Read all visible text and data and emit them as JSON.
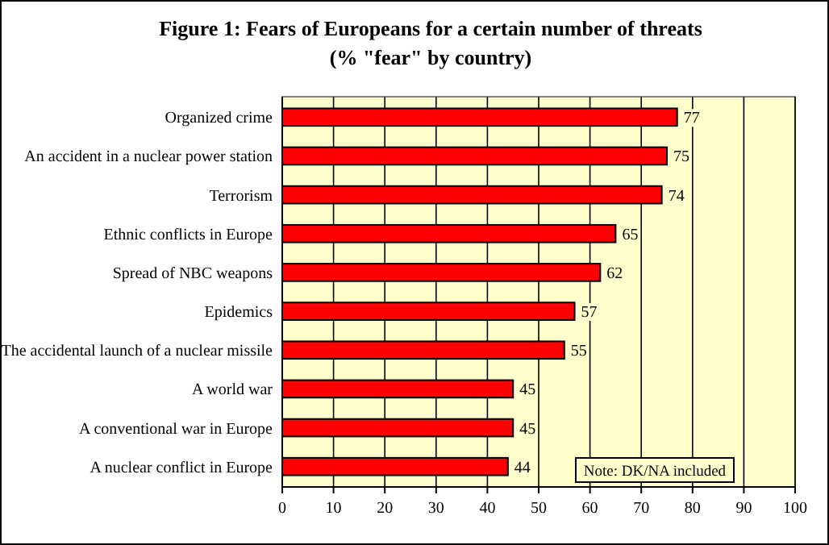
{
  "chart_data": {
    "type": "bar",
    "orientation": "horizontal",
    "title": "Figure 1: Fears of Europeans for a certain number of threats",
    "subtitle": "(% \"fear\" by country)",
    "categories": [
      "Organized crime",
      "An accident in a nuclear power station",
      "Terrorism",
      "Ethnic conflicts in Europe",
      "Spread of NBC weapons",
      "Epidemics",
      "The accidental launch of a nuclear missile",
      "A world war",
      "A conventional war in Europe",
      "A nuclear conflict in Europe"
    ],
    "values": [
      77,
      75,
      74,
      65,
      62,
      57,
      55,
      45,
      45,
      44
    ],
    "color": "#ff0000",
    "data_labels": true,
    "xlim": [
      0,
      100
    ],
    "xticks": [
      0,
      10,
      20,
      30,
      40,
      50,
      60,
      70,
      80,
      90,
      100
    ],
    "grid": "x",
    "annotations": [
      "Note: DK/NA included"
    ]
  }
}
